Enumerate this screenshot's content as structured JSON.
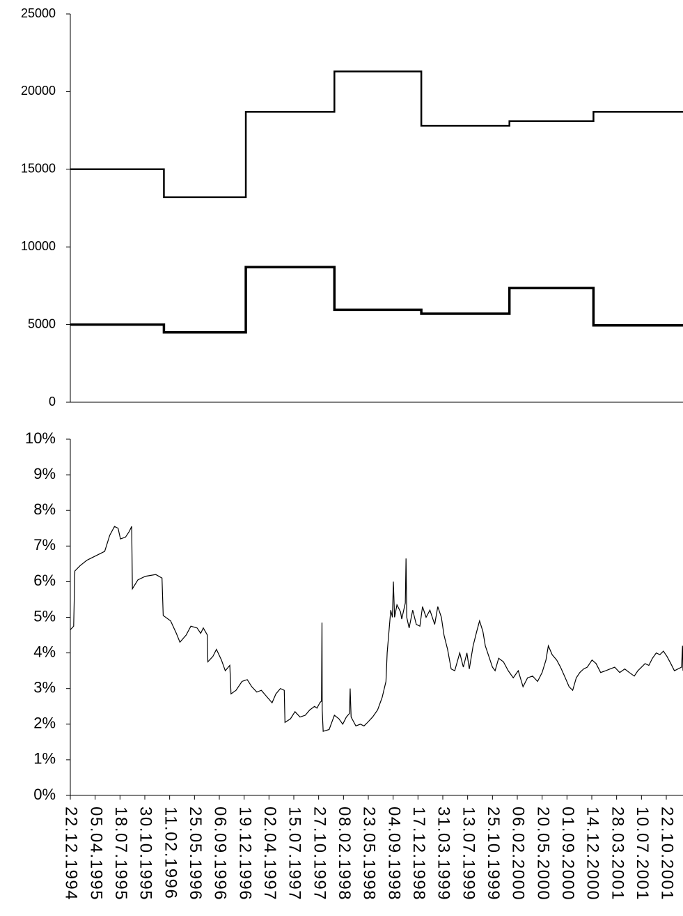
{
  "chart_data": [
    {
      "type": "line",
      "step": true,
      "ylim": [
        0,
        25000
      ],
      "yticks": [
        "0",
        "5000",
        "10000",
        "15000",
        "20000",
        "25000"
      ],
      "ytick_values": [
        0,
        5000,
        10000,
        15000,
        20000,
        25000
      ],
      "xlim": [
        "1994-12-22",
        "2001-12-31"
      ],
      "grid": false,
      "series": [
        {
          "line_width": 2.5,
          "points": [
            [
              "1994-12-22",
              15000
            ],
            [
              "1996-01-18",
              15000
            ],
            [
              "1996-01-18",
              13200
            ],
            [
              "1996-12-26",
              13200
            ],
            [
              "1996-12-26",
              18700
            ],
            [
              "1998-01-01",
              18700
            ],
            [
              "1998-01-01",
              21300
            ],
            [
              "1998-12-31",
              21300
            ],
            [
              "1998-12-31",
              17800
            ],
            [
              "2000-01-04",
              17800
            ],
            [
              "2000-01-04",
              18100
            ],
            [
              "2000-12-21",
              18100
            ],
            [
              "2000-12-21",
              18700
            ],
            [
              "2001-12-31",
              18700
            ]
          ]
        },
        {
          "line_width": 3.5,
          "points": [
            [
              "1994-12-22",
              5000
            ],
            [
              "1996-01-18",
              5000
            ],
            [
              "1996-01-18",
              4500
            ],
            [
              "1996-12-26",
              4500
            ],
            [
              "1996-12-26",
              8700
            ],
            [
              "1998-01-01",
              8700
            ],
            [
              "1998-01-01",
              5950
            ],
            [
              "1998-12-31",
              5950
            ],
            [
              "1998-12-31",
              5700
            ],
            [
              "2000-01-04",
              5700
            ],
            [
              "2000-01-04",
              7350
            ],
            [
              "2000-12-21",
              7350
            ],
            [
              "2000-12-21",
              4950
            ],
            [
              "2001-12-31",
              4950
            ]
          ]
        }
      ]
    },
    {
      "type": "line",
      "ylim": [
        0,
        10
      ],
      "yticks": [
        "0%",
        "1%",
        "2%",
        "3%",
        "4%",
        "5%",
        "6%",
        "7%",
        "8%",
        "9%",
        "10%"
      ],
      "ytick_values": [
        0,
        1,
        2,
        3,
        4,
        5,
        6,
        7,
        8,
        9,
        10
      ],
      "xlim": [
        "1994-12-22",
        "2001-12-31"
      ],
      "xticks": [
        "22.12.1994",
        "05.04.1995",
        "18.07.1995",
        "30.10.1995",
        "11.02.1996",
        "25.05.1996",
        "06.09.1996",
        "19.12.1996",
        "02.04.1997",
        "15.07.1997",
        "27.10.1997",
        "08.02.1998",
        "23.05.1998",
        "04.09.1998",
        "17.12.1998",
        "31.03.1999",
        "13.07.1999",
        "25.10.1999",
        "06.02.2000",
        "20.05.2000",
        "01.09.2000",
        "14.12.2000",
        "28.03.2001",
        "10.07.2001",
        "22.10.2001"
      ],
      "xtick_dates": [
        "1994-12-22",
        "1995-04-05",
        "1995-07-18",
        "1995-10-30",
        "1996-02-11",
        "1996-05-25",
        "1996-09-06",
        "1996-12-19",
        "1997-04-02",
        "1997-07-15",
        "1997-10-27",
        "1998-02-08",
        "1998-05-23",
        "1998-09-04",
        "1998-12-17",
        "1999-03-31",
        "1999-07-13",
        "1999-10-25",
        "2000-02-06",
        "2000-05-20",
        "2000-09-01",
        "2000-12-14",
        "2001-03-28",
        "2001-07-10",
        "2001-10-22"
      ],
      "grid": false,
      "series": [
        {
          "line_width": 1.2,
          "points": [
            [
              "1994-12-22",
              4.65
            ],
            [
              "1995-01-05",
              4.75
            ],
            [
              "1995-01-10",
              6.3
            ],
            [
              "1995-02-01",
              6.45
            ],
            [
              "1995-03-01",
              6.6
            ],
            [
              "1995-04-15",
              6.75
            ],
            [
              "1995-05-15",
              6.85
            ],
            [
              "1995-06-05",
              7.3
            ],
            [
              "1995-06-25",
              7.55
            ],
            [
              "1995-07-10",
              7.5
            ],
            [
              "1995-07-20",
              7.2
            ],
            [
              "1995-08-10",
              7.25
            ],
            [
              "1995-08-25",
              7.4
            ],
            [
              "1995-09-05",
              7.55
            ],
            [
              "1995-09-08",
              5.8
            ],
            [
              "1995-10-01",
              6.05
            ],
            [
              "1995-11-01",
              6.15
            ],
            [
              "1995-12-15",
              6.2
            ],
            [
              "1996-01-10",
              6.1
            ],
            [
              "1996-01-15",
              5.05
            ],
            [
              "1996-02-15",
              4.9
            ],
            [
              "1996-03-10",
              4.55
            ],
            [
              "1996-03-25",
              4.3
            ],
            [
              "1996-04-20",
              4.5
            ],
            [
              "1996-05-10",
              4.75
            ],
            [
              "1996-06-05",
              4.7
            ],
            [
              "1996-06-20",
              4.55
            ],
            [
              "1996-07-01",
              4.7
            ],
            [
              "1996-07-18",
              4.5
            ],
            [
              "1996-07-20",
              3.75
            ],
            [
              "1996-08-10",
              3.9
            ],
            [
              "1996-08-25",
              4.1
            ],
            [
              "1996-09-15",
              3.8
            ],
            [
              "1996-10-01",
              3.5
            ],
            [
              "1996-10-20",
              3.65
            ],
            [
              "1996-10-25",
              2.85
            ],
            [
              "1996-11-15",
              2.95
            ],
            [
              "1996-12-10",
              3.2
            ],
            [
              "1997-01-01",
              3.25
            ],
            [
              "1997-01-20",
              3.05
            ],
            [
              "1997-02-10",
              2.9
            ],
            [
              "1997-03-01",
              2.95
            ],
            [
              "1997-03-20",
              2.8
            ],
            [
              "1997-04-15",
              2.6
            ],
            [
              "1997-05-01",
              2.85
            ],
            [
              "1997-05-20",
              3.0
            ],
            [
              "1997-06-05",
              2.95
            ],
            [
              "1997-06-08",
              2.05
            ],
            [
              "1997-07-01",
              2.15
            ],
            [
              "1997-07-20",
              2.35
            ],
            [
              "1997-08-10",
              2.2
            ],
            [
              "1997-09-01",
              2.25
            ],
            [
              "1997-09-20",
              2.4
            ],
            [
              "1997-10-10",
              2.5
            ],
            [
              "1997-10-20",
              2.45
            ],
            [
              "1997-11-01",
              2.6
            ],
            [
              "1997-11-08",
              2.65
            ],
            [
              "1997-11-10",
              4.85
            ],
            [
              "1997-11-11",
              2.4
            ],
            [
              "1997-11-15",
              1.8
            ],
            [
              "1997-12-10",
              1.85
            ],
            [
              "1998-01-01",
              2.25
            ],
            [
              "1998-01-20",
              2.15
            ],
            [
              "1998-02-05",
              2.0
            ],
            [
              "1998-02-20",
              2.2
            ],
            [
              "1998-03-05",
              2.3
            ],
            [
              "1998-03-08",
              3.0
            ],
            [
              "1998-03-12",
              2.2
            ],
            [
              "1998-04-01",
              1.95
            ],
            [
              "1998-04-20",
              2.0
            ],
            [
              "1998-05-05",
              1.95
            ],
            [
              "1998-05-20",
              2.05
            ],
            [
              "1998-06-10",
              2.2
            ],
            [
              "1998-07-01",
              2.4
            ],
            [
              "1998-07-20",
              2.75
            ],
            [
              "1998-08-05",
              3.2
            ],
            [
              "1998-08-10",
              4.0
            ],
            [
              "1998-08-25",
              5.2
            ],
            [
              "1998-09-01",
              5.0
            ],
            [
              "1998-09-05",
              6.0
            ],
            [
              "1998-09-10",
              5.0
            ],
            [
              "1998-09-20",
              5.35
            ],
            [
              "1998-10-05",
              5.15
            ],
            [
              "1998-10-10",
              4.95
            ],
            [
              "1998-10-25",
              5.4
            ],
            [
              "1998-10-28",
              6.65
            ],
            [
              "1998-10-31",
              5.0
            ],
            [
              "1998-11-10",
              4.7
            ],
            [
              "1998-11-25",
              5.2
            ],
            [
              "1998-12-10",
              4.8
            ],
            [
              "1998-12-25",
              4.75
            ],
            [
              "1999-01-05",
              5.3
            ],
            [
              "1999-01-20",
              5.0
            ],
            [
              "1999-02-05",
              5.2
            ],
            [
              "1999-02-25",
              4.8
            ],
            [
              "1999-03-10",
              5.3
            ],
            [
              "1999-03-25",
              5.0
            ],
            [
              "1999-04-05",
              4.5
            ],
            [
              "1999-04-20",
              4.1
            ],
            [
              "1999-05-05",
              3.55
            ],
            [
              "1999-05-20",
              3.5
            ],
            [
              "1999-06-10",
              4.0
            ],
            [
              "1999-06-25",
              3.6
            ],
            [
              "1999-07-10",
              4.0
            ],
            [
              "1999-07-20",
              3.55
            ],
            [
              "1999-08-05",
              4.2
            ],
            [
              "1999-08-20",
              4.6
            ],
            [
              "1999-09-01",
              4.9
            ],
            [
              "1999-09-15",
              4.6
            ],
            [
              "1999-09-25",
              4.2
            ],
            [
              "1999-10-10",
              3.9
            ],
            [
              "1999-10-25",
              3.6
            ],
            [
              "1999-11-05",
              3.5
            ],
            [
              "1999-11-20",
              3.85
            ],
            [
              "1999-12-10",
              3.75
            ],
            [
              "1999-12-30",
              3.5
            ],
            [
              "2000-01-20",
              3.3
            ],
            [
              "2000-02-10",
              3.5
            ],
            [
              "2000-03-01",
              3.05
            ],
            [
              "2000-03-20",
              3.3
            ],
            [
              "2000-04-10",
              3.35
            ],
            [
              "2000-05-01",
              3.2
            ],
            [
              "2000-05-20",
              3.45
            ],
            [
              "2000-06-05",
              3.8
            ],
            [
              "2000-06-15",
              4.2
            ],
            [
              "2000-07-01",
              3.95
            ],
            [
              "2000-07-20",
              3.8
            ],
            [
              "2000-08-05",
              3.6
            ],
            [
              "2000-08-25",
              3.3
            ],
            [
              "2000-09-10",
              3.05
            ],
            [
              "2000-09-25",
              2.95
            ],
            [
              "2000-10-10",
              3.3
            ],
            [
              "2000-10-25",
              3.45
            ],
            [
              "2000-11-10",
              3.55
            ],
            [
              "2000-11-25",
              3.6
            ],
            [
              "2000-12-15",
              3.8
            ],
            [
              "2001-01-01",
              3.7
            ],
            [
              "2001-01-20",
              3.45
            ],
            [
              "2001-02-10",
              3.5
            ],
            [
              "2001-03-01",
              3.55
            ],
            [
              "2001-03-20",
              3.6
            ],
            [
              "2001-04-10",
              3.45
            ],
            [
              "2001-05-01",
              3.55
            ],
            [
              "2001-05-20",
              3.45
            ],
            [
              "2001-06-10",
              3.35
            ],
            [
              "2001-06-25",
              3.5
            ],
            [
              "2001-07-10",
              3.6
            ],
            [
              "2001-07-25",
              3.7
            ],
            [
              "2001-08-10",
              3.65
            ],
            [
              "2001-08-25",
              3.85
            ],
            [
              "2001-09-10",
              4.0
            ],
            [
              "2001-09-25",
              3.95
            ],
            [
              "2001-10-10",
              4.05
            ],
            [
              "2001-10-25",
              3.9
            ],
            [
              "2001-11-10",
              3.7
            ],
            [
              "2001-11-25",
              3.5
            ],
            [
              "2001-12-10",
              3.55
            ],
            [
              "2001-12-25",
              3.6
            ],
            [
              "2001-12-29",
              4.2
            ],
            [
              "2001-12-31",
              3.5
            ]
          ]
        }
      ]
    }
  ]
}
